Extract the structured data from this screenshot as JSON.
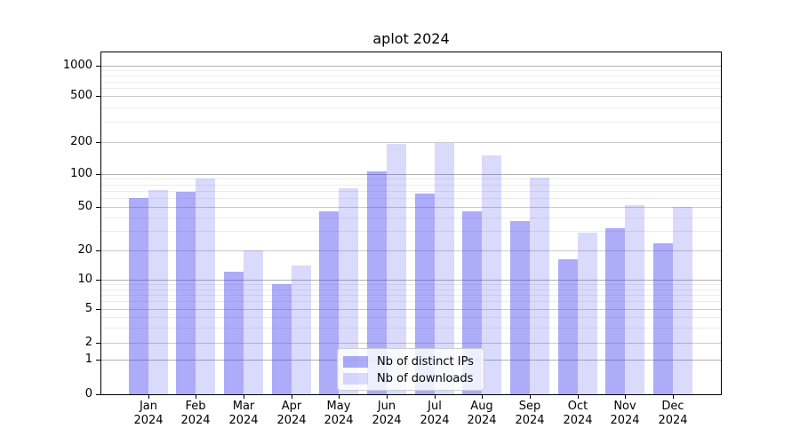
{
  "chart_data": {
    "type": "bar",
    "title": "aplot 2024",
    "categories": [
      "Jan",
      "Feb",
      "Mar",
      "Apr",
      "May",
      "Jun",
      "Jul",
      "Aug",
      "Sep",
      "Oct",
      "Nov",
      "Dec"
    ],
    "category_year": "2024",
    "series": [
      {
        "name": "Nb of distinct IPs",
        "color": "#4646f2",
        "alpha": 0.45,
        "values": [
          60,
          68,
          12,
          9,
          45,
          105,
          66,
          45,
          37,
          16,
          32,
          23
        ]
      },
      {
        "name": "Nb of downloads",
        "color": "#4646f2",
        "alpha": 0.2,
        "values": [
          71,
          90,
          20,
          14,
          74,
          190,
          195,
          150,
          92,
          29,
          52,
          50
        ]
      }
    ],
    "xlabel": "",
    "ylabel": "",
    "yscale": "symlog",
    "yticks": [
      0,
      1,
      2,
      5,
      10,
      20,
      50,
      100,
      200,
      500,
      1000
    ],
    "ylim": [
      0,
      1300
    ],
    "grid": "major+minor",
    "legend_position": "lower center",
    "colors": {
      "grid_major": "#cacaca",
      "grid_minor": "#ececec",
      "axis": "#000000",
      "background": "#ffffff"
    }
  }
}
